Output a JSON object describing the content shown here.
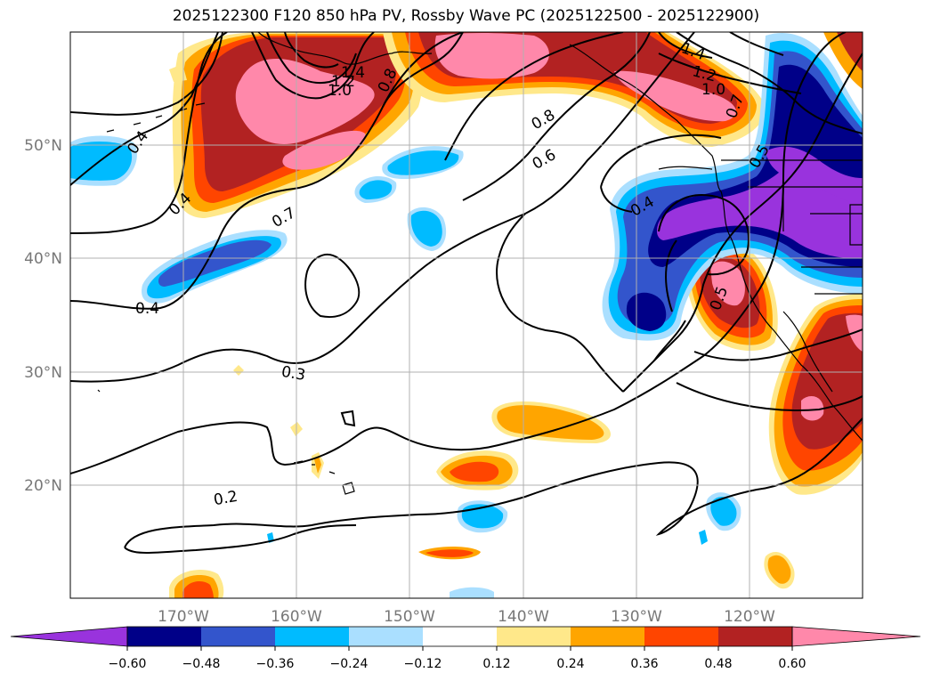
{
  "title": "2025122300 F120 850 hPa PV, Rossby Wave PC (2025122500 - 2025122900)",
  "lon_labels": [
    "170°W",
    "160°W",
    "150°W",
    "140°W",
    "130°W",
    "120°W"
  ],
  "lat_labels": [
    "50°N",
    "40°N",
    "30°N",
    "20°N"
  ],
  "contour_labels": [
    "1.4",
    "1.2",
    "1.0",
    "0.8",
    "1.4",
    "1.2",
    "1.0",
    "0.8",
    "0.7",
    "0.6",
    "0.4",
    "0.4",
    "0.7",
    "0.4",
    "0.3",
    "0.2",
    "0.5",
    "0.4",
    "0.5"
  ],
  "colorbar": {
    "colors": [
      "#9933dd",
      "#000088",
      "#3355cc",
      "#00bbff",
      "#aadfff",
      "#ffffff",
      "#ffe88a",
      "#ffa500",
      "#ff4500",
      "#b22222",
      "#ff88aa",
      "#ff88aa"
    ],
    "tick_labels": [
      "−0.60",
      "−0.48",
      "−0.36",
      "−0.24",
      "−0.12",
      "0.12",
      "0.24",
      "0.36",
      "0.48",
      "0.60"
    ]
  }
}
